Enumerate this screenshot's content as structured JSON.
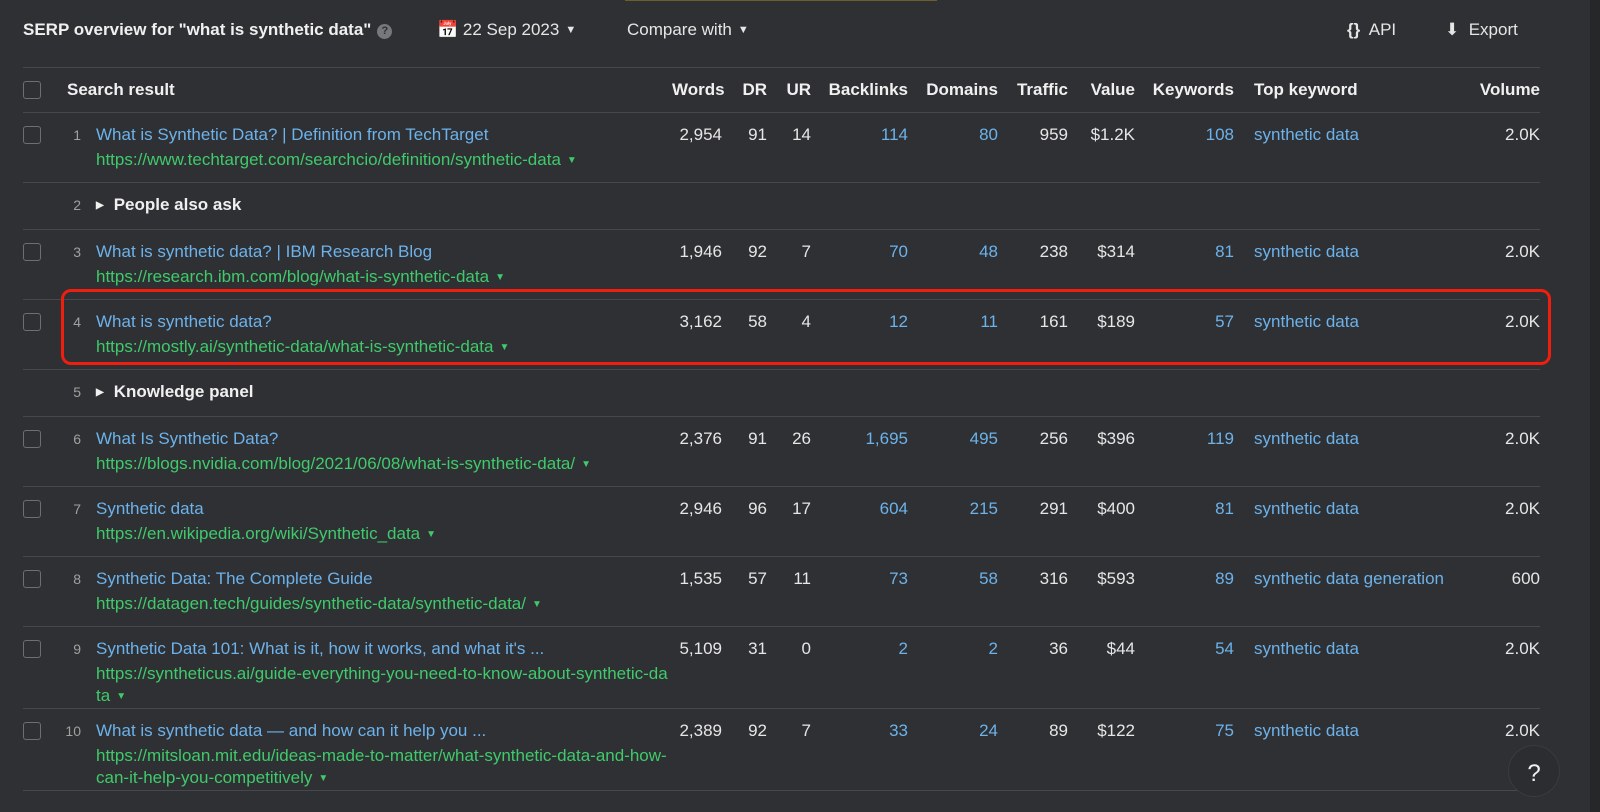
{
  "header": {
    "title": "SERP overview for \"what is synthetic data\"",
    "date": "22 Sep 2023",
    "compare": "Compare with",
    "api": "API",
    "export": "Export"
  },
  "columns": {
    "search_result": "Search result",
    "words": "Words",
    "dr": "DR",
    "ur": "UR",
    "backlinks": "Backlinks",
    "domains": "Domains",
    "traffic": "Traffic",
    "value": "Value",
    "keywords": "Keywords",
    "top_keyword": "Top keyword",
    "volume": "Volume"
  },
  "rows": [
    {
      "pos": "1",
      "title": "What is Synthetic Data? | Definition from TechTarget",
      "url": "https://www.techtarget.com/searchcio/definition/synthetic-data",
      "words": "2,954",
      "dr": "91",
      "ur": "14",
      "backlinks": "114",
      "domains": "80",
      "traffic": "959",
      "value": "$1.2K",
      "keywords": "108",
      "top_keyword": "synthetic data",
      "volume": "2.0K"
    },
    {
      "pos": "2",
      "special": "People also ask"
    },
    {
      "pos": "3",
      "title": "What is synthetic data? | IBM Research Blog",
      "url": "https://research.ibm.com/blog/what-is-synthetic-data",
      "words": "1,946",
      "dr": "92",
      "ur": "7",
      "backlinks": "70",
      "domains": "48",
      "traffic": "238",
      "value": "$314",
      "keywords": "81",
      "top_keyword": "synthetic data",
      "volume": "2.0K"
    },
    {
      "pos": "4",
      "title": "What is synthetic data?",
      "url": "https://mostly.ai/synthetic-data/what-is-synthetic-data",
      "words": "3,162",
      "dr": "58",
      "ur": "4",
      "backlinks": "12",
      "domains": "11",
      "traffic": "161",
      "value": "$189",
      "keywords": "57",
      "top_keyword": "synthetic data",
      "volume": "2.0K",
      "highlighted": true
    },
    {
      "pos": "5",
      "special": "Knowledge panel"
    },
    {
      "pos": "6",
      "title": "What Is Synthetic Data?",
      "url": "https://blogs.nvidia.com/blog/2021/06/08/what-is-synthetic-data/",
      "words": "2,376",
      "dr": "91",
      "ur": "26",
      "backlinks": "1,695",
      "domains": "495",
      "traffic": "256",
      "value": "$396",
      "keywords": "119",
      "top_keyword": "synthetic data",
      "volume": "2.0K"
    },
    {
      "pos": "7",
      "title": "Synthetic data",
      "url": "https://en.wikipedia.org/wiki/Synthetic_data",
      "words": "2,946",
      "dr": "96",
      "ur": "17",
      "backlinks": "604",
      "domains": "215",
      "traffic": "291",
      "value": "$400",
      "keywords": "81",
      "top_keyword": "synthetic data",
      "volume": "2.0K"
    },
    {
      "pos": "8",
      "title": "Synthetic Data: The Complete Guide",
      "url": "https://datagen.tech/guides/synthetic-data/synthetic-data/",
      "words": "1,535",
      "dr": "57",
      "ur": "11",
      "backlinks": "73",
      "domains": "58",
      "traffic": "316",
      "value": "$593",
      "keywords": "89",
      "top_keyword": "synthetic data generation",
      "volume": "600"
    },
    {
      "pos": "9",
      "title": "Synthetic Data 101: What is it, how it works, and what it's ...",
      "url": "https://syntheticus.ai/guide-everything-you-need-to-know-about-synthetic-data",
      "words": "5,109",
      "dr": "31",
      "ur": "0",
      "backlinks": "2",
      "domains": "2",
      "traffic": "36",
      "value": "$44",
      "keywords": "54",
      "top_keyword": "synthetic data",
      "volume": "2.0K"
    },
    {
      "pos": "10",
      "title": "What is synthetic data — and how can it help you ...",
      "url": "https://mitsloan.mit.edu/ideas-made-to-matter/what-synthetic-data-and-how-can-it-help-you-competitively",
      "words": "2,389",
      "dr": "92",
      "ur": "7",
      "backlinks": "33",
      "domains": "24",
      "traffic": "89",
      "value": "$122",
      "keywords": "75",
      "top_keyword": "synthetic data",
      "volume": "2.0K"
    }
  ],
  "help_button": "?",
  "colors": {
    "link": "#6cb2eb",
    "url": "#3fca6b",
    "highlight": "#f01e0e",
    "background": "#2f3033"
  }
}
